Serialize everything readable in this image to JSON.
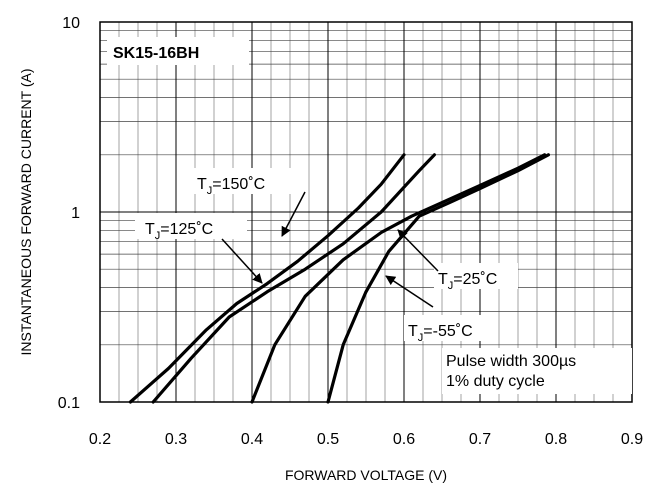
{
  "chart_data": {
    "type": "line",
    "title": "SK15-16BH",
    "xlabel": "FORWARD VOLTAGE (V)",
    "ylabel": "INSTANTANEOUS FORWARD CURRENT (A)",
    "xlim": [
      0.2,
      0.9
    ],
    "ylim": [
      0.1,
      10
    ],
    "yscale": "log",
    "grid": true,
    "x_ticks": [
      "0.2",
      "0.3",
      "0.4",
      "0.5",
      "0.6",
      "0.7",
      "0.8",
      "0.9"
    ],
    "y_ticks": [
      "0.1",
      "1",
      "10"
    ],
    "series": [
      {
        "label": {
          "main": "T",
          "sub": "J",
          "rest": "=150˚C"
        },
        "x": [
          0.24,
          0.29,
          0.34,
          0.38,
          0.42,
          0.46,
          0.5,
          0.54,
          0.57,
          0.6
        ],
        "y": [
          0.1,
          0.15,
          0.24,
          0.33,
          0.42,
          0.55,
          0.75,
          1.05,
          1.4,
          2.0
        ]
      },
      {
        "label": {
          "main": "T",
          "sub": "J",
          "rest": "=125˚C"
        },
        "x": [
          0.27,
          0.32,
          0.37,
          0.42,
          0.47,
          0.52,
          0.57,
          0.6,
          0.62,
          0.64
        ],
        "y": [
          0.1,
          0.17,
          0.28,
          0.38,
          0.5,
          0.68,
          1.0,
          1.35,
          1.65,
          2.0
        ]
      },
      {
        "label": {
          "main": "T",
          "sub": "J",
          "rest": "=25˚C"
        },
        "x": [
          0.4,
          0.43,
          0.47,
          0.52,
          0.57,
          0.61,
          0.65,
          0.7,
          0.75,
          0.785
        ],
        "y": [
          0.1,
          0.2,
          0.36,
          0.56,
          0.78,
          0.95,
          1.12,
          1.38,
          1.7,
          2.0
        ]
      },
      {
        "label": {
          "main": "T",
          "sub": "J",
          "rest": "=-55˚C"
        },
        "x": [
          0.5,
          0.52,
          0.55,
          0.58,
          0.62,
          0.66,
          0.7,
          0.75,
          0.79
        ],
        "y": [
          0.1,
          0.2,
          0.38,
          0.62,
          0.95,
          1.12,
          1.33,
          1.65,
          2.0
        ]
      }
    ],
    "annotations": [
      {
        "text": "Pulse width 300µs"
      },
      {
        "text": "1% duty cycle"
      }
    ]
  }
}
